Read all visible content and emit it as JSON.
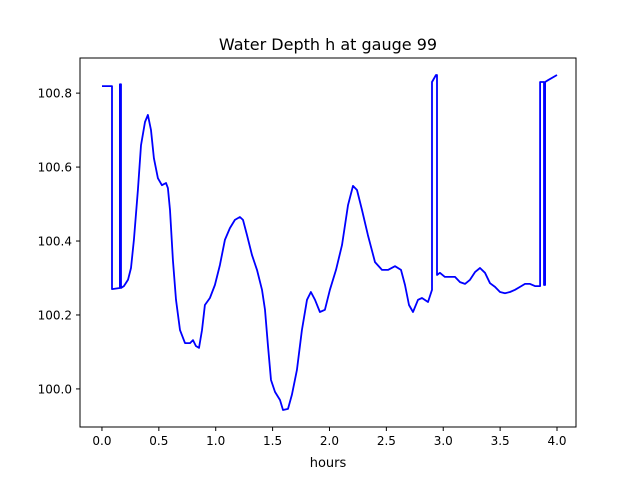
{
  "chart_data": {
    "type": "line",
    "title": "Water Depth h at gauge 99",
    "xlabel": "hours",
    "ylabel": "",
    "xlim": [
      -0.193,
      4.167
    ],
    "ylim": [
      99.897,
      100.895
    ],
    "xticks": [
      0.0,
      0.5,
      1.0,
      1.5,
      2.0,
      2.5,
      3.0,
      3.5,
      4.0
    ],
    "xtick_labels": [
      "0.0",
      "0.5",
      "1.0",
      "1.5",
      "2.0",
      "2.5",
      "3.0",
      "3.5",
      "4.0"
    ],
    "yticks": [
      100.0,
      100.2,
      100.4,
      100.6,
      100.8
    ],
    "ytick_labels": [
      "100.0",
      "100.2",
      "100.4",
      "100.6",
      "100.8"
    ],
    "grid": false,
    "series": [
      {
        "name": "h",
        "color": "#0000ff",
        "x": [
          0,
          0.088,
          0.088,
          0.158,
          0.158,
          0.167,
          0.167,
          0.193,
          0.229,
          0.255,
          0.281,
          0.316,
          0.343,
          0.378,
          0.404,
          0.431,
          0.457,
          0.492,
          0.527,
          0.563,
          0.58,
          0.598,
          0.624,
          0.651,
          0.686,
          0.73,
          0.774,
          0.8,
          0.826,
          0.853,
          0.879,
          0.905,
          0.949,
          0.993,
          1.037,
          1.081,
          1.125,
          1.169,
          1.213,
          1.24,
          1.275,
          1.319,
          1.363,
          1.407,
          1.433,
          1.459,
          1.486,
          1.521,
          1.565,
          1.591,
          1.635,
          1.67,
          1.714,
          1.758,
          1.802,
          1.837,
          1.873,
          1.916,
          1.96,
          2.004,
          2.057,
          2.11,
          2.163,
          2.207,
          2.242,
          2.286,
          2.338,
          2.4,
          2.462,
          2.514,
          2.576,
          2.629,
          2.664,
          2.699,
          2.734,
          2.778,
          2.813,
          2.866,
          2.901,
          2.901,
          2.936,
          2.945,
          2.945,
          2.971,
          3.015,
          3.059,
          3.103,
          3.147,
          3.191,
          3.235,
          3.279,
          3.323,
          3.367,
          3.411,
          3.455,
          3.499,
          3.543,
          3.587,
          3.631,
          3.675,
          3.719,
          3.763,
          3.807,
          3.851,
          3.851,
          3.886,
          3.886,
          3.895,
          3.895,
          3.921,
          4.0
        ],
        "y": [
          100.819,
          100.819,
          100.27,
          100.273,
          100.824,
          100.824,
          100.273,
          100.278,
          100.295,
          100.327,
          100.403,
          100.538,
          100.659,
          100.722,
          100.741,
          100.7,
          100.624,
          100.57,
          100.551,
          100.557,
          100.543,
          100.484,
          100.349,
          100.241,
          100.159,
          100.124,
          100.124,
          100.132,
          100.116,
          100.111,
          100.159,
          100.227,
          100.246,
          100.281,
          100.335,
          100.403,
          100.435,
          100.457,
          100.465,
          100.457,
          100.416,
          100.362,
          100.322,
          100.268,
          100.214,
          100.119,
          100.024,
          99.992,
          99.97,
          99.943,
          99.946,
          99.984,
          100.051,
          100.159,
          100.241,
          100.262,
          100.241,
          100.208,
          100.214,
          100.268,
          100.322,
          100.389,
          100.497,
          100.549,
          100.538,
          100.484,
          100.416,
          100.343,
          100.322,
          100.322,
          100.332,
          100.322,
          100.281,
          100.227,
          100.208,
          100.241,
          100.246,
          100.235,
          100.268,
          100.83,
          100.849,
          100.849,
          100.308,
          100.314,
          100.303,
          100.303,
          100.303,
          100.289,
          100.284,
          100.295,
          100.316,
          100.327,
          100.314,
          100.286,
          100.276,
          100.262,
          100.259,
          100.262,
          100.268,
          100.276,
          100.284,
          100.284,
          100.278,
          100.278,
          100.83,
          100.83,
          100.281,
          100.281,
          100.83,
          100.835,
          100.849
        ]
      }
    ]
  }
}
